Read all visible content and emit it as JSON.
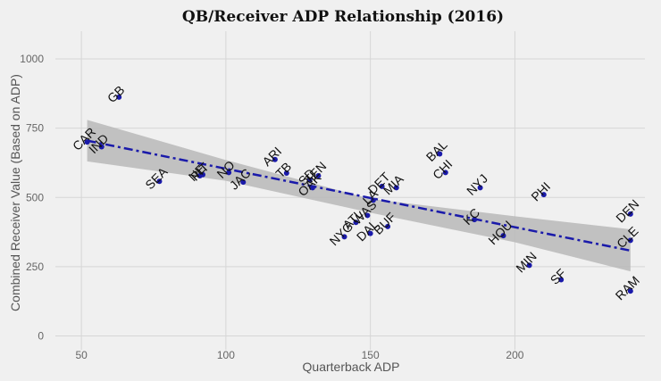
{
  "chart_data": {
    "type": "scatter",
    "title": "QB/Receiver ADP Relationship (2016)",
    "xlabel": "Quarterback ADP",
    "ylabel": "Combined Receiver Value (Based on ADP)",
    "xlim": [
      41,
      245
    ],
    "ylim": [
      -50,
      1100
    ],
    "xticks": [
      50,
      100,
      150,
      200
    ],
    "yticks": [
      0,
      250,
      500,
      750,
      1000
    ],
    "grid": true,
    "points": [
      {
        "label": "GB",
        "x": 63,
        "y": 862
      },
      {
        "label": "CAR",
        "x": 52,
        "y": 700
      },
      {
        "label": "IND",
        "x": 57,
        "y": 683
      },
      {
        "label": "SEA",
        "x": 77,
        "y": 558
      },
      {
        "label": "NE",
        "x": 91,
        "y": 578
      },
      {
        "label": "PIT",
        "x": 92,
        "y": 582
      },
      {
        "label": "NO",
        "x": 101,
        "y": 590
      },
      {
        "label": "JAC",
        "x": 106,
        "y": 555
      },
      {
        "label": "ARI",
        "x": 117,
        "y": 637
      },
      {
        "label": "TB",
        "x": 121,
        "y": 588
      },
      {
        "label": "TEN",
        "x": 132,
        "y": 578
      },
      {
        "label": "SD",
        "x": 129,
        "y": 563
      },
      {
        "label": "OAK",
        "x": 130,
        "y": 535
      },
      {
        "label": "NYG",
        "x": 141,
        "y": 358
      },
      {
        "label": "WAS",
        "x": 149,
        "y": 435
      },
      {
        "label": "ATL",
        "x": 145,
        "y": 410
      },
      {
        "label": "LA",
        "x": 151,
        "y": 490
      },
      {
        "label": "DAL",
        "x": 150,
        "y": 370
      },
      {
        "label": "BUF",
        "x": 156,
        "y": 395
      },
      {
        "label": "DET",
        "x": 154,
        "y": 540
      },
      {
        "label": "MIA",
        "x": 159,
        "y": 535
      },
      {
        "label": "BAL",
        "x": 174,
        "y": 657
      },
      {
        "label": "CHI",
        "x": 176,
        "y": 590
      },
      {
        "label": "NYJ",
        "x": 188,
        "y": 535
      },
      {
        "label": "KC",
        "x": 186,
        "y": 420
      },
      {
        "label": "HOU",
        "x": 196,
        "y": 362
      },
      {
        "label": "PHI",
        "x": 210,
        "y": 510
      },
      {
        "label": "MIN",
        "x": 205,
        "y": 255
      },
      {
        "label": "SF",
        "x": 216,
        "y": 203
      },
      {
        "label": "DEN",
        "x": 240,
        "y": 440
      },
      {
        "label": "CLE",
        "x": 240,
        "y": 345
      },
      {
        "label": "RAM",
        "x": 240,
        "y": 162
      }
    ],
    "trendline": {
      "x": [
        52,
        240
      ],
      "y": [
        705,
        308
      ],
      "style": "dash-dot",
      "color": "#1a1aaa"
    },
    "confidence_band": {
      "x": [
        52,
        100,
        150,
        200,
        240
      ],
      "lower": [
        630,
        560,
        445,
        338,
        233
      ],
      "upper": [
        780,
        635,
        495,
        432,
        385
      ],
      "color": "#b8b8b8"
    },
    "point_color": "#1a1aaa"
  }
}
